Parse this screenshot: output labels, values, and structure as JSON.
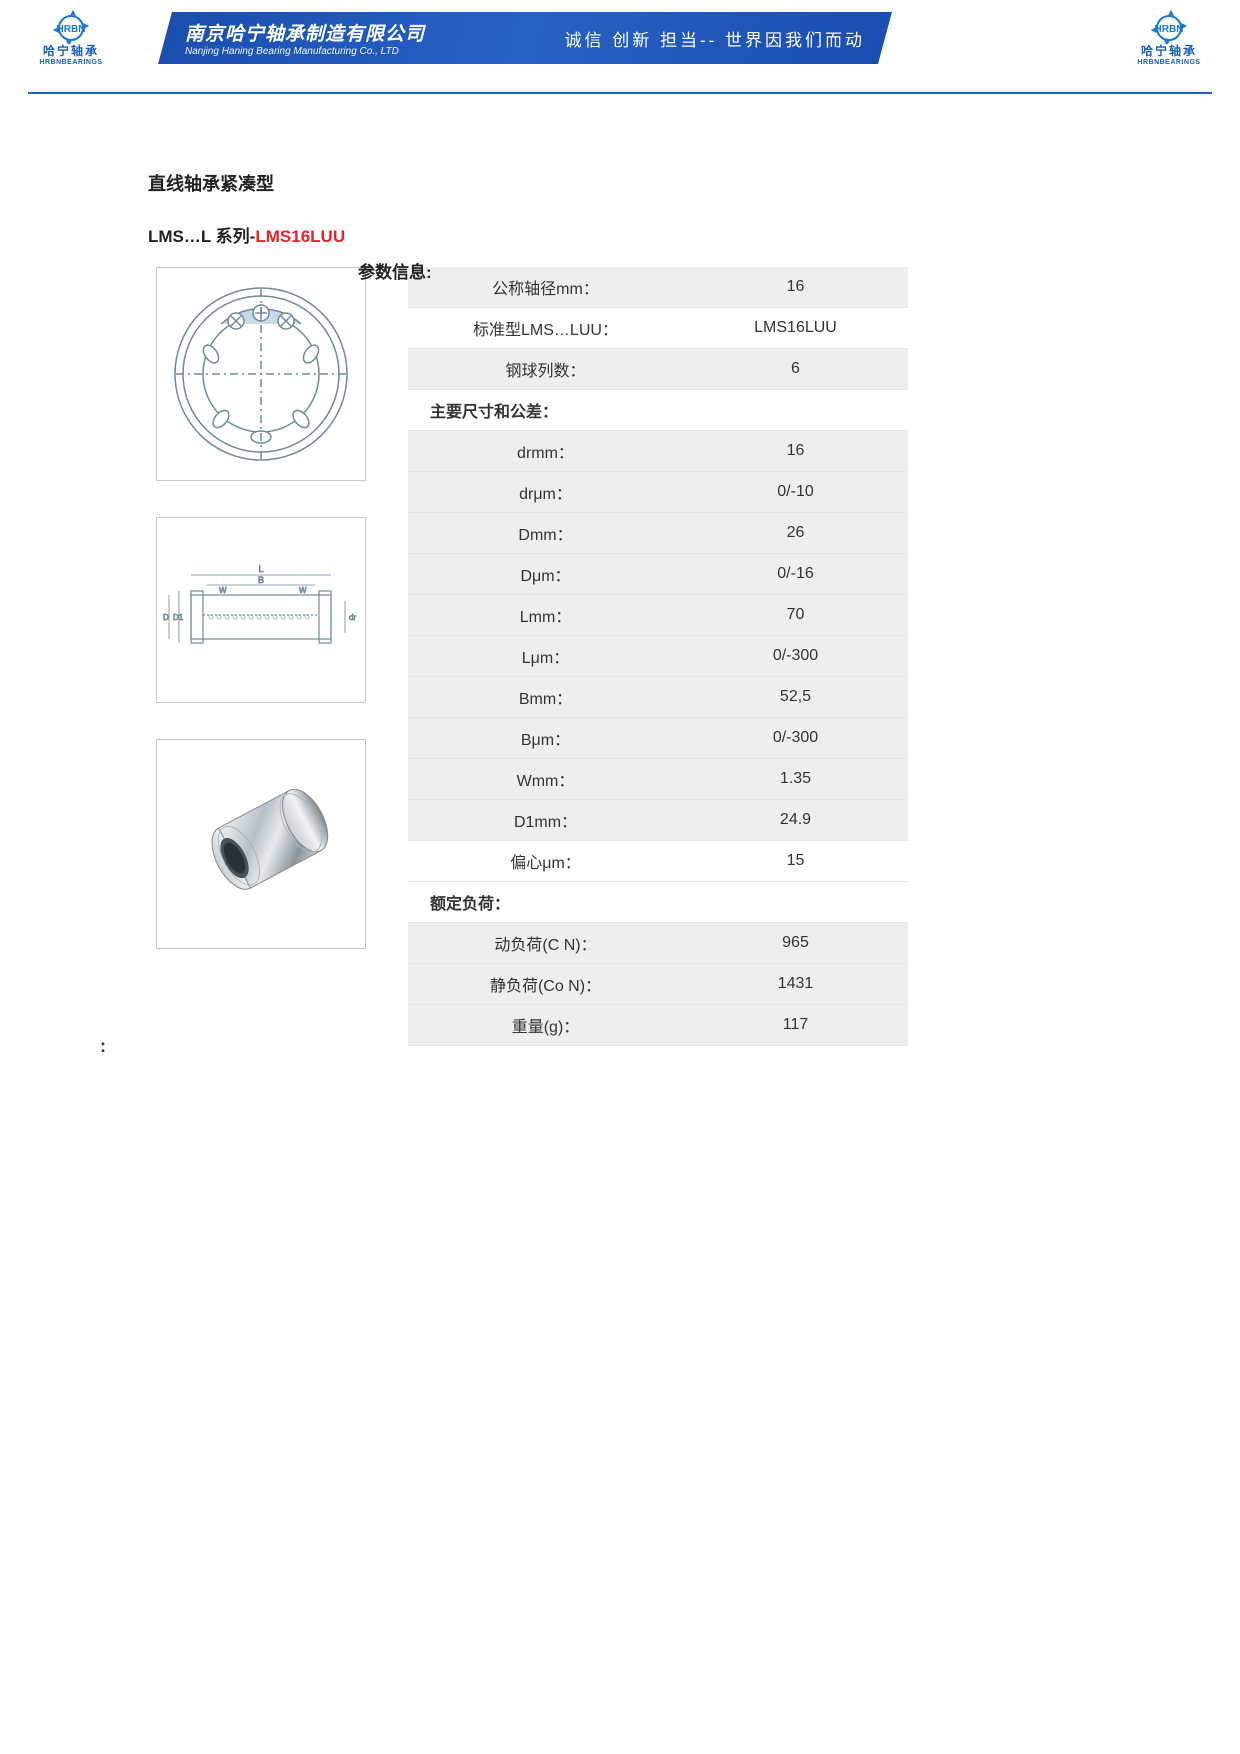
{
  "header": {
    "company_cn": "南京哈宁轴承制造有限公司",
    "company_en": "Nanjing Haning Bearing Manufacturing Co., LTD",
    "slogan": "诚信 创新 担当-- 世界因我们而动",
    "logo_top": "HRBN",
    "logo_cn": "哈宁轴承",
    "logo_en": "HRBNBEARINGS",
    "banner_color": "#2760c4",
    "hr_color": "#1e5fc9"
  },
  "title": {
    "line1": "直线轴承紧凑型",
    "line2_black": "LMS…L 系列-",
    "line2_red": "LMS16LUU",
    "param_label": "参数信息:"
  },
  "specs": {
    "rows": [
      {
        "label": "公称轴径mm：",
        "value": "16",
        "striped": true
      },
      {
        "label": "标准型LMS…LUU：",
        "value": "LMS16LUU",
        "striped": false
      },
      {
        "label": "钢球列数：",
        "value": "6",
        "striped": true
      }
    ],
    "section1_title": "主要尺寸和公差：",
    "dims": [
      {
        "label": "drmm：",
        "value": "16"
      },
      {
        "label": "drμm：",
        "value": "0/-10"
      },
      {
        "label": "Dmm：",
        "value": "26"
      },
      {
        "label": "Dμm：",
        "value": "0/-16"
      },
      {
        "label": "Lmm：",
        "value": "70"
      },
      {
        "label": "Lμm：",
        "value": "0/-300"
      },
      {
        "label": "Bmm：",
        "value": "52,5"
      },
      {
        "label": "Bμm：",
        "value": "0/-300"
      },
      {
        "label": "Wmm：",
        "value": "1.35"
      },
      {
        "label": "D1mm：",
        "value": "24.9"
      }
    ],
    "ecc": {
      "label": "偏心μm：",
      "value": "15"
    },
    "section2_title": "额定负荷：",
    "loads": [
      {
        "label": "动负荷(C N)：",
        "value": "965"
      },
      {
        "label": "静负荷(Co N)：",
        "value": "1431"
      }
    ],
    "weight": {
      "label": "重量(g)：",
      "value": "117"
    }
  },
  "diagrams": {
    "d1_desc": "top-view-bearing",
    "d2_desc": "side-view-bearing",
    "d3_desc": "3d-bearing-render",
    "stroke": "#8aa5b5",
    "fill_light": "#d6e2ec",
    "dim_labels": {
      "L": "L",
      "B": "B",
      "W": "W",
      "D": "D",
      "D1": "D1",
      "dr": "dr"
    }
  },
  "footer_colon": ":",
  "colors": {
    "text": "#333333",
    "red": "#e8222b",
    "row_stripe": "#eeeeee",
    "row_border": "#e5e5e5",
    "diagram_border": "#c8c8c8"
  }
}
